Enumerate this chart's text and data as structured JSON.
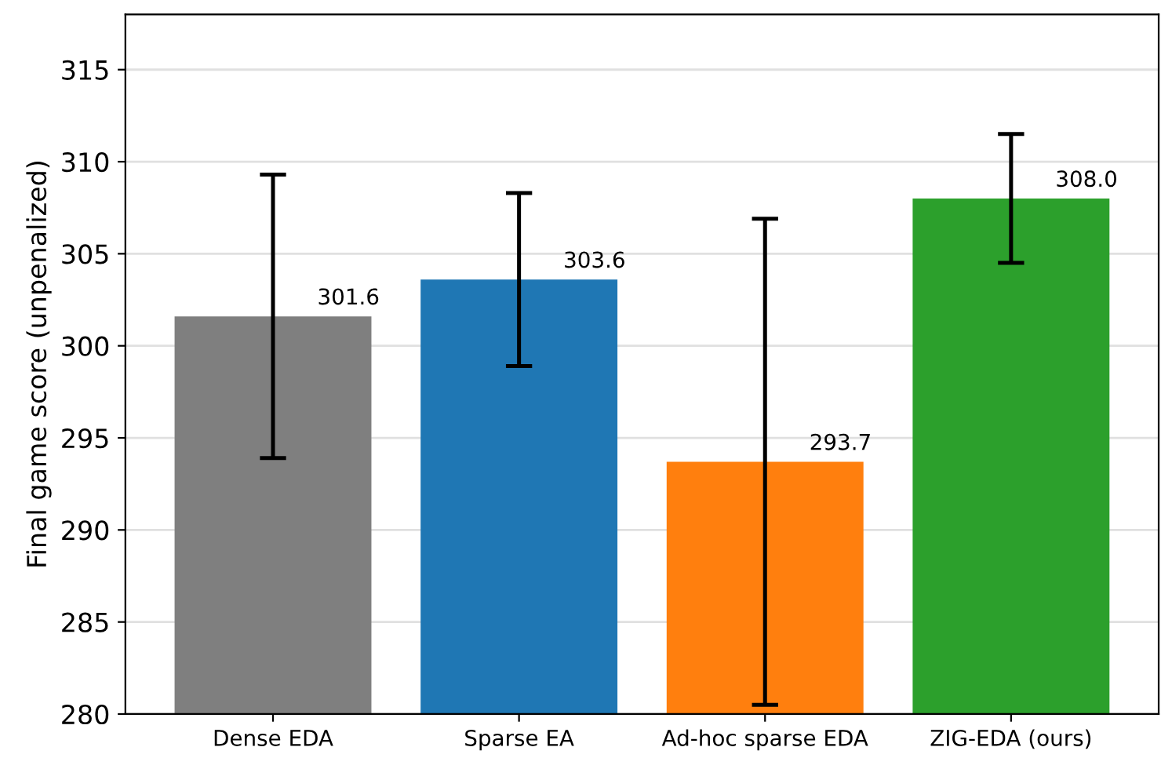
{
  "chart_data": {
    "type": "bar",
    "ylabel": "Final game score (unpenalized)",
    "categories": [
      "Dense EDA",
      "Sparse EA",
      "Ad-hoc sparse EDA",
      "ZIG-EDA (ours)"
    ],
    "values": [
      301.6,
      303.6,
      293.7,
      308.0
    ],
    "colors": [
      "#7f7f7f",
      "#1f77b4",
      "#ff7f0e",
      "#2ca02c"
    ],
    "errors": [
      7.7,
      4.7,
      13.2,
      3.5
    ],
    "value_labels": [
      "301.6",
      "303.6",
      "293.7",
      "308.0"
    ],
    "ylim": [
      280,
      318
    ],
    "yticks": [
      280,
      285,
      290,
      295,
      300,
      305,
      310,
      315
    ],
    "grid": "y",
    "legend": false
  }
}
